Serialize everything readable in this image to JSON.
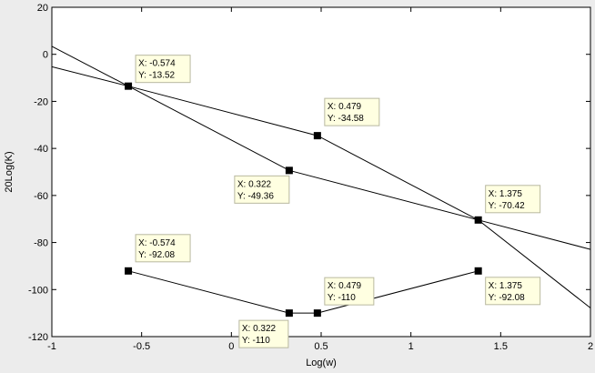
{
  "chart_data": {
    "type": "line",
    "title": "",
    "xlabel": "Log(w)",
    "ylabel": "20Log(K)",
    "xlim": [
      -1,
      2
    ],
    "ylim": [
      -120,
      20
    ],
    "xticks": [
      -1,
      -0.5,
      0,
      0.5,
      1,
      1.5,
      2
    ],
    "xtick_labels": [
      "-1",
      "-0.5",
      "0",
      "0.5",
      "1",
      "1.5",
      "2"
    ],
    "yticks": [
      20,
      0,
      -20,
      -40,
      -60,
      -80,
      -100,
      -120
    ],
    "ytick_labels": [
      "20",
      "0",
      "-20",
      "-40",
      "-60",
      "-80",
      "-100",
      "-120"
    ],
    "grid": false,
    "lines": [
      {
        "x": [
          -1,
          -0.574,
          0.479,
          1.375,
          2
        ],
        "y": [
          -5.3,
          -13.52,
          -34.58,
          -70.42,
          -82.9
        ]
      },
      {
        "x": [
          -1,
          -0.574,
          0.322,
          1.375,
          2
        ],
        "y": [
          3.4,
          -13.52,
          -49.36,
          -70.42,
          -107.8
        ]
      },
      {
        "x": [
          -0.574,
          0.322,
          0.479,
          1.375
        ],
        "y": [
          -92.08,
          -110,
          -110,
          -92.08
        ]
      }
    ],
    "datatips": [
      {
        "x": -0.574,
        "y": -13.52,
        "xtext": "X: -0.574",
        "ytext": "Y: -13.52",
        "dx": 8,
        "dy": -34
      },
      {
        "x": 0.479,
        "y": -34.58,
        "xtext": "X: 0.479",
        "ytext": "Y: -34.58",
        "dx": 8,
        "dy": -41
      },
      {
        "x": 0.322,
        "y": -49.36,
        "xtext": "X: 0.322",
        "ytext": "Y: -49.36",
        "dx": -60,
        "dy": 6
      },
      {
        "x": 1.375,
        "y": -70.42,
        "xtext": "X: 1.375",
        "ytext": "Y: -70.42",
        "dx": 8,
        "dy": -38
      },
      {
        "x": -0.574,
        "y": -92.08,
        "xtext": "X: -0.574",
        "ytext": "Y: -92.08",
        "dx": 8,
        "dy": -40
      },
      {
        "x": 0.479,
        "y": -110,
        "xtext": "X: 0.479",
        "ytext": "Y: -110",
        "dx": 8,
        "dy": -39
      },
      {
        "x": 0.322,
        "y": -110,
        "xtext": "X: 0.322",
        "ytext": "Y: -110",
        "dx": -55,
        "dy": 8
      },
      {
        "x": 1.375,
        "y": -92.08,
        "xtext": "X: 1.375",
        "ytext": "Y: -92.08",
        "dx": 8,
        "dy": 7
      }
    ]
  }
}
